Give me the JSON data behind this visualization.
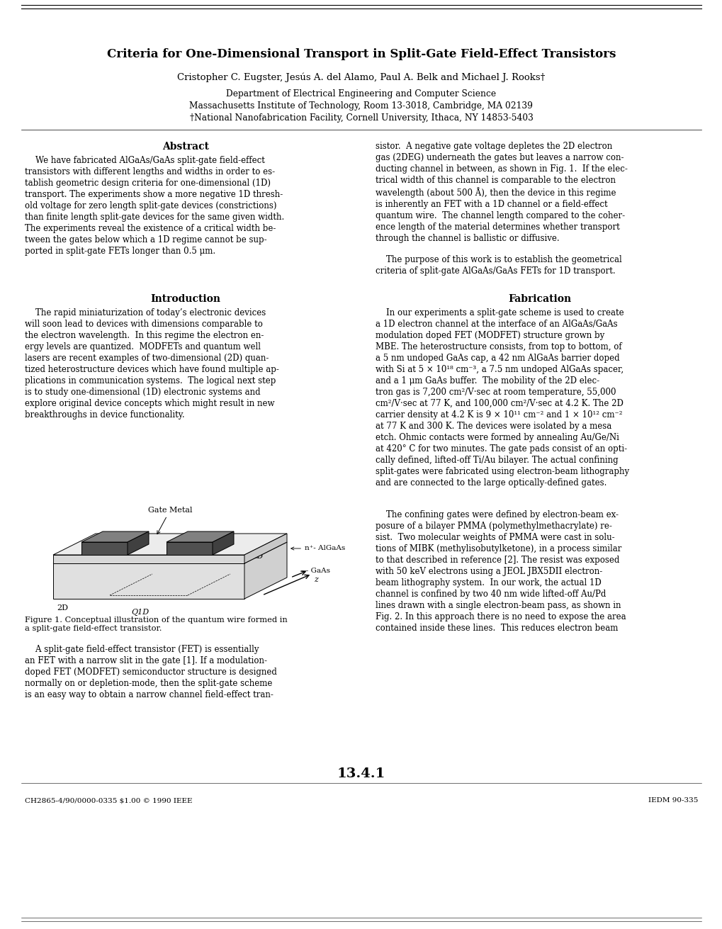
{
  "title": "Criteria for One-Dimensional Transport in Split-Gate Field-Effect Transistors",
  "authors": "Cristopher C. Eugster, Jesús A. del Alamo, Paul A. Belk and Michael J. Rooks†",
  "affil1": "Department of Electrical Engineering and Computer Science",
  "affil2": "Massachusetts Institute of Technology, Room 13-3018, Cambridge, MA 02139",
  "affil3": "†National Nanofabrication Facility, Cornell University, Ithaca, NY 14853-5403",
  "abstract_title": "Abstract",
  "abstract_col1": "    We have fabricated AlGaAs/GaAs split-gate field-effect\ntransistors with different lengths and widths in order to es-\ntablish geometric design criteria for one-dimensional (1D)\ntransport. The experiments show a more negative 1D thresh-\nold voltage for zero length split-gate devices (constrictions)\nthan finite length split-gate devices for the same given width.\nThe experiments reveal the existence of a critical width be-\ntween the gates below which a 1D regime cannot be sup-\nported in split-gate FETs longer than 0.5 μm.",
  "abstract_col2": "sistor.  A negative gate voltage depletes the 2D electron\ngas (2DEG) underneath the gates but leaves a narrow con-\nducting channel in between, as shown in Fig. 1.  If the elec-\ntrical width of this channel is comparable to the electron\nwavelength (about 500 Å), then the device in this regime\nis inherently an FET with a 1D channel or a field-effect\nquantum wire.  The channel length compared to the coher-\nence length of the material determines whether transport\nthrough the channel is ballistic or diffusive.",
  "purpose_col2": "    The purpose of this work is to establish the geometrical\ncriteria of split-gate AlGaAs/GaAs FETs for 1D transport.",
  "intro_title": "Introduction",
  "intro_col1": "    The rapid miniaturization of today’s electronic devices\nwill soon lead to devices with dimensions comparable to\nthe electron wavelength.  In this regime the electron en-\nergy levels are quantized.  MODFETs and quantum well\nlasers are recent examples of two-dimensional (2D) quan-\ntized heterostructure devices which have found multiple ap-\nplications in communication systems.  The logical next step\nis to study one-dimensional (1D) electronic systems and\nexplore original device concepts which might result in new\nbreakthroughs in device functionality.",
  "fab_title": "Fabrication",
  "fab_col2_part1": "    In our experiments a split-gate scheme is used to create\na 1D electron channel at the interface of an AlGaAs/GaAs\nmodulation doped FET (MODFET) structure grown by\nMBE. The heterostructure consists, from top to bottom, of\na 5 nm undoped GaAs cap, a 42 nm AlGaAs barrier doped\nwith Si at 5 × 10¹⁸ cm⁻³, a 7.5 nm undoped AlGaAs spacer,\nand a 1 μm GaAs buffer.  The mobility of the 2D elec-\ntron gas is 7,200 cm²/V·sec at room temperature, 55,000\ncm²/V·sec at 77 K, and 100,000 cm²/V·sec at 4.2 K. The 2D\ncarrier density at 4.2 K is 9 × 10¹¹ cm⁻² and 1 × 10¹² cm⁻²\nat 77 K and 300 K. The devices were isolated by a mesa\netch. Ohmic contacts were formed by annealing Au/Ge/Ni\nat 420° C for two minutes. The gate pads consist of an opti-\ncally defined, lifted-off Ti/Au bilayer. The actual confining\nsplit-gates were fabricated using electron-beam lithography\nand are connected to the large optically-defined gates.",
  "fab_col2_part2": "    The confining gates were defined by electron-beam ex-\nposure of a bilayer PMMA (polymethylmethacrylate) re-\nsist.  Two molecular weights of PMMA were cast in solu-\ntions of MIBK (methylisobutylketone), in a process similar\nto that described in reference [2]. The resist was exposed\nwith 50 keV electrons using a JEOL JBX5DII electron-\nbeam lithography system.  In our work, the actual 1D\nchannel is confined by two 40 nm wide lifted-off Au/Pd\nlines drawn with a single electron-beam pass, as shown in\nFig. 2. In this approach there is no need to expose the area\ncontained inside these lines.  This reduces electron beam",
  "fig1_caption": "Figure 1. Conceptual illustration of the quantum wire formed in\na split-gate field-effect transistor.",
  "after_fig_col1": "    A split-gate field-effect transistor (FET) is essentially\nan FET with a narrow slit in the gate [1]. If a modulation-\ndoped FET (MODFET) semiconductor structure is designed\nnormally on or depletion-mode, then the split-gate scheme\nis an easy way to obtain a narrow channel field-effect tran-",
  "page_num": "13.4.1",
  "footer_left": "CH2865-4/90/0000-0335 $1.00 © 1990 IEEE",
  "footer_right": "IEDM 90-335",
  "bg_color": "#ffffff"
}
